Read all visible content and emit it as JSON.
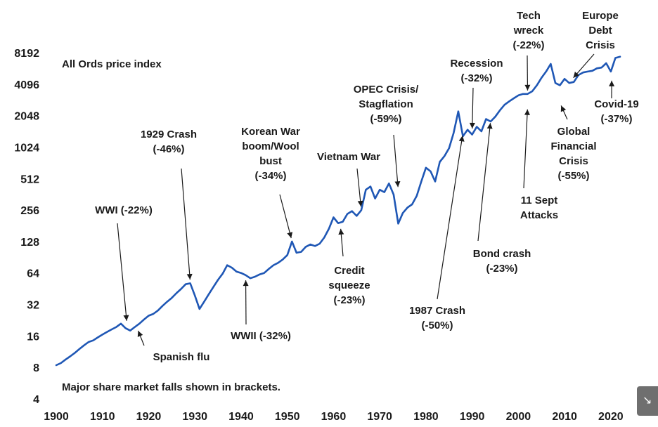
{
  "colors": {
    "line": "#1f57b5",
    "text": "#1a1a1a",
    "widget": "#6f6f6f"
  },
  "icons": {
    "corner_widget": "arrow-icon"
  },
  "chart_data": {
    "type": "line",
    "title": "",
    "xlabel": "",
    "ylabel": "",
    "y_scale": "log2",
    "xlim": [
      1900,
      2022
    ],
    "ylim": [
      4,
      8192
    ],
    "x_ticks": [
      "1900",
      "1910",
      "1920",
      "1930",
      "1940",
      "1950",
      "1960",
      "1970",
      "1980",
      "1990",
      "2000",
      "2010",
      "2020"
    ],
    "y_ticks": [
      "8192",
      "4096",
      "2048",
      "1024",
      "512",
      "256",
      "128",
      "64",
      "32",
      "16",
      "8",
      "4"
    ],
    "notes": [
      {
        "id": "index-name",
        "text": "All Ords price index"
      },
      {
        "id": "footnote",
        "text": "Major share market falls shown in brackets."
      }
    ],
    "series": [
      {
        "x": [
          1900,
          1901,
          1902,
          1903,
          1904,
          1905,
          1906,
          1907,
          1908,
          1909,
          1910,
          1911,
          1912,
          1913,
          1914,
          1915,
          1916,
          1917,
          1918,
          1919,
          1920,
          1921,
          1922,
          1923,
          1924,
          1925,
          1926,
          1927,
          1928,
          1929,
          1930,
          1931,
          1932,
          1933,
          1934,
          1935,
          1936,
          1937,
          1938,
          1939,
          1940,
          1941,
          1942,
          1943,
          1944,
          1945,
          1946,
          1947,
          1948,
          1949,
          1950,
          1951,
          1952,
          1953,
          1954,
          1955,
          1956,
          1957,
          1958,
          1959,
          1960,
          1961,
          1962,
          1963,
          1964,
          1965,
          1966,
          1967,
          1968,
          1969,
          1970,
          1971,
          1972,
          1973,
          1974,
          1975,
          1976,
          1977,
          1978,
          1979,
          1980,
          1981,
          1982,
          1983,
          1984,
          1985,
          1986,
          1987,
          1988,
          1989,
          1990,
          1991,
          1992,
          1993,
          1994,
          1995,
          1996,
          1997,
          1998,
          1999,
          2000,
          2001,
          2002,
          2003,
          2004,
          2005,
          2006,
          2007,
          2008,
          2009,
          2010,
          2011,
          2012,
          2013,
          2014,
          2015,
          2016,
          2017,
          2018,
          2019,
          2020,
          2021,
          2022
        ],
        "y": [
          8.4,
          8.8,
          9.5,
          10.2,
          11,
          12,
          13,
          14,
          14.5,
          15.5,
          16.5,
          17.5,
          18.5,
          19.5,
          21,
          19,
          18,
          19.5,
          21,
          23,
          25,
          26,
          28,
          31,
          34,
          37,
          41,
          45,
          50,
          51,
          39,
          29,
          34,
          40,
          47,
          55,
          63,
          76,
          72,
          66,
          64,
          61,
          57,
          59,
          62,
          64,
          70,
          76,
          80,
          86,
          95,
          128,
          100,
          102,
          114,
          120,
          116,
          122,
          140,
          170,
          218,
          192,
          198,
          235,
          250,
          225,
          255,
          400,
          430,
          330,
          400,
          380,
          460,
          360,
          190,
          240,
          270,
          290,
          350,
          480,
          650,
          600,
          480,
          740,
          840,
          1000,
          1400,
          2250,
          1300,
          1500,
          1350,
          1600,
          1450,
          1900,
          1800,
          2000,
          2300,
          2600,
          2800,
          3000,
          3200,
          3300,
          3300,
          3500,
          4000,
          4700,
          5400,
          6400,
          4200,
          4000,
          4600,
          4200,
          4300,
          5000,
          5300,
          5400,
          5500,
          5800,
          5900,
          6500,
          5400,
          7300,
          7500
        ]
      }
    ],
    "annotations": [
      {
        "id": "wwi",
        "lines": [
          "WWI (-22%)"
        ],
        "x": 1915.3,
        "y": 21
      },
      {
        "id": "spanish-flu",
        "lines": [
          "Spanish flu"
        ],
        "x": 1917.5,
        "y": 19
      },
      {
        "id": "crash-1929",
        "lines": [
          "1929 Crash",
          "(-46%)"
        ],
        "x": 1929,
        "y": 52
      },
      {
        "id": "wwii",
        "lines": [
          "WWII (-32%)"
        ],
        "x": 1941,
        "y": 58
      },
      {
        "id": "korean-war",
        "lines": [
          "Korean War",
          "boom/Wool",
          "bust",
          "(-34%)"
        ],
        "x": 1951,
        "y": 130
      },
      {
        "id": "credit-squeeze",
        "lines": [
          "Credit",
          "squeeze",
          "(-23%)"
        ],
        "x": 1961.5,
        "y": 180
      },
      {
        "id": "vietnam-war",
        "lines": [
          "Vietnam War"
        ],
        "x": 1966,
        "y": 260
      },
      {
        "id": "opec-crisis",
        "lines": [
          "OPEC Crisis/",
          "Stagflation",
          "(-59%)"
        ],
        "x": 1974,
        "y": 400
      },
      {
        "id": "crash-1987",
        "lines": [
          "1987 Crash",
          "(-50%)"
        ],
        "x": 1988,
        "y": 1400
      },
      {
        "id": "recession",
        "lines": [
          "Recession",
          "(-32%)"
        ],
        "x": 1990,
        "y": 1450
      },
      {
        "id": "bond-crash",
        "lines": [
          "Bond crash",
          "(-23%)"
        ],
        "x": 1994,
        "y": 1850
      },
      {
        "id": "tech-wreck",
        "lines": [
          "Tech",
          "wreck",
          "(-22%)"
        ],
        "x": 2002,
        "y": 3350
      },
      {
        "id": "sept-11",
        "lines": [
          "11 Sept",
          "Attacks"
        ],
        "x": 2002,
        "y": 2500
      },
      {
        "id": "gfc",
        "lines": [
          "Global",
          "Financial",
          "Crisis",
          "(-55%)"
        ],
        "x": 2009,
        "y": 2700
      },
      {
        "id": "europe-debt",
        "lines": [
          "Europe",
          "Debt",
          "Crisis"
        ],
        "x": 2011.5,
        "y": 4500
      },
      {
        "id": "covid-19",
        "lines": [
          "Covid-19",
          "(-37%)"
        ],
        "x": 2020.2,
        "y": 4700
      }
    ]
  }
}
